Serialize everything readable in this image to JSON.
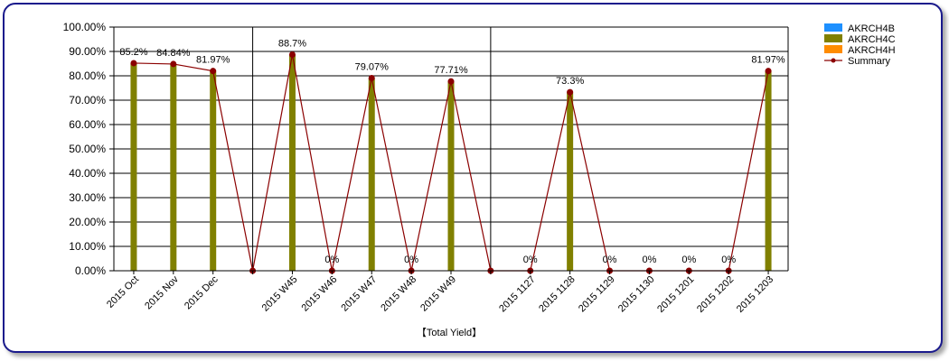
{
  "chart_data": {
    "type": "bar",
    "title": "",
    "xlabel": "【Total Yield】",
    "ylabel": "",
    "ylim": [
      0,
      100
    ],
    "y_ticks": [
      "0.00%",
      "10.00%",
      "20.00%",
      "30.00%",
      "40.00%",
      "50.00%",
      "60.00%",
      "70.00%",
      "80.00%",
      "90.00%",
      "100.00%"
    ],
    "grid": true,
    "legend_position": "top-right",
    "categories": [
      "2015 Oct",
      "2015 Nov",
      "2015 Dec",
      "",
      "2015 W45",
      "2015 W46",
      "2015 W47",
      "2015 W48",
      "2015 W49",
      "",
      "2015 1127",
      "2015 1128",
      "2015 1129",
      "2015 1130",
      "2015 1201",
      "2015 1202",
      "2015 1203"
    ],
    "series": [
      {
        "name": "AKRCH4B",
        "type": "bar",
        "color": "#1e90ff",
        "values": [
          null,
          null,
          null,
          null,
          null,
          null,
          null,
          null,
          null,
          null,
          null,
          null,
          null,
          null,
          null,
          null,
          null
        ]
      },
      {
        "name": "AKRCH4C",
        "type": "bar",
        "color": "#808000",
        "values": [
          85.2,
          84.84,
          81.97,
          null,
          88.7,
          0,
          79.07,
          0,
          77.71,
          null,
          0,
          73.3,
          0,
          0,
          0,
          0,
          81.97
        ]
      },
      {
        "name": "AKRCH4H",
        "type": "bar",
        "color": "#ff8c00",
        "values": [
          null,
          null,
          null,
          null,
          null,
          null,
          null,
          null,
          null,
          null,
          null,
          null,
          null,
          null,
          null,
          null,
          null
        ]
      },
      {
        "name": "Summary",
        "type": "line",
        "color": "#8b0000",
        "values": [
          85.2,
          84.84,
          81.97,
          0,
          88.7,
          0,
          79.07,
          0,
          77.71,
          0,
          0,
          73.3,
          0,
          0,
          0,
          0,
          81.97
        ]
      }
    ],
    "data_labels": [
      "85.2%",
      "84.84%",
      "81.97%",
      "",
      "88.7%",
      "0%",
      "79.07%",
      "0%",
      "77.71%",
      "",
      "0%",
      "73.3%",
      "0%",
      "0%",
      "0%",
      "0%",
      "81.97%"
    ]
  }
}
